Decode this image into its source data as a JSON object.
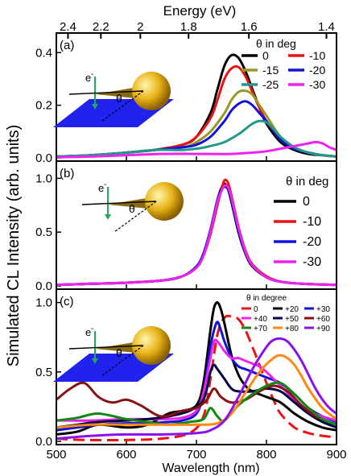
{
  "figure": {
    "top_axis_label": "Energy (eV)",
    "y_axis_label": "Simulated CL Intensity (arb. units)",
    "x_axis_label": "Wavelength (nm)",
    "x_ticks": [
      "500",
      "600",
      "700",
      "800",
      "900"
    ],
    "energy_ticks": [
      {
        "label": "2.4",
        "ev": 2.4
      },
      {
        "label": "2.2",
        "ev": 2.2
      },
      {
        "label": "2",
        "ev": 2.0
      },
      {
        "label": "1.8",
        "ev": 1.8
      },
      {
        "label": "1.6",
        "ev": 1.6
      },
      {
        "label": "1.4",
        "ev": 1.4
      }
    ]
  },
  "colors": {
    "substrate": "#2222ee",
    "sphere": "#e8b418",
    "electron_beam": "#22aa55"
  },
  "chart_data": [
    {
      "type": "line",
      "panel_label": "(a)",
      "legend_title": "",
      "legend_header": "θ in deg",
      "inset_theta": "θ",
      "inset_electron": "e",
      "inset_electron_sup": "-",
      "xlim": [
        500,
        900
      ],
      "ylim": [
        0,
        0.45
      ],
      "y_ticks": [
        "0.0",
        "0.2",
        "0.4"
      ],
      "y_tick_values": [
        0,
        0.2,
        0.4
      ],
      "series": [
        {
          "name": "0",
          "color": "#000000",
          "x": [
            500,
            550,
            600,
            640,
            680,
            700,
            720,
            730,
            740,
            750,
            760,
            770,
            780,
            790,
            800,
            820,
            840,
            860,
            880,
            900
          ],
          "y": [
            0.005,
            0.01,
            0.02,
            0.03,
            0.05,
            0.08,
            0.17,
            0.26,
            0.35,
            0.39,
            0.38,
            0.33,
            0.26,
            0.19,
            0.13,
            0.06,
            0.03,
            0.015,
            0.01,
            0.005
          ]
        },
        {
          "name": "-10",
          "color": "#ee1111",
          "x": [
            500,
            550,
            600,
            640,
            680,
            700,
            720,
            730,
            740,
            750,
            760,
            770,
            780,
            790,
            800,
            820,
            840,
            860,
            880,
            900
          ],
          "y": [
            0.005,
            0.01,
            0.02,
            0.03,
            0.05,
            0.08,
            0.15,
            0.22,
            0.3,
            0.34,
            0.345,
            0.31,
            0.25,
            0.19,
            0.14,
            0.07,
            0.035,
            0.02,
            0.01,
            0.005
          ]
        },
        {
          "name": "-15",
          "color": "#999922",
          "x": [
            500,
            550,
            600,
            640,
            680,
            700,
            720,
            740,
            750,
            760,
            770,
            780,
            790,
            800,
            820,
            840,
            860,
            880,
            900
          ],
          "y": [
            0.005,
            0.01,
            0.02,
            0.03,
            0.04,
            0.06,
            0.1,
            0.17,
            0.22,
            0.25,
            0.255,
            0.24,
            0.2,
            0.16,
            0.08,
            0.04,
            0.02,
            0.01,
            0.005
          ]
        },
        {
          "name": "-20",
          "color": "#1111dd",
          "x": [
            500,
            550,
            600,
            640,
            680,
            700,
            720,
            740,
            750,
            760,
            770,
            780,
            790,
            800,
            820,
            840,
            860,
            880,
            900
          ],
          "y": [
            0.005,
            0.01,
            0.02,
            0.03,
            0.04,
            0.05,
            0.08,
            0.14,
            0.18,
            0.205,
            0.215,
            0.2,
            0.17,
            0.14,
            0.07,
            0.035,
            0.02,
            0.01,
            0.005
          ]
        },
        {
          "name": "-25",
          "color": "#229988",
          "x": [
            500,
            550,
            600,
            640,
            680,
            700,
            720,
            740,
            760,
            770,
            780,
            790,
            800,
            810,
            820,
            840,
            860,
            880,
            900
          ],
          "y": [
            0.005,
            0.01,
            0.02,
            0.03,
            0.03,
            0.035,
            0.045,
            0.06,
            0.09,
            0.11,
            0.13,
            0.14,
            0.135,
            0.11,
            0.08,
            0.04,
            0.02,
            0.01,
            0.005
          ]
        },
        {
          "name": "-30",
          "color": "#ee22ee",
          "x": [
            500,
            550,
            600,
            650,
            700,
            750,
            780,
            800,
            820,
            840,
            860,
            870,
            880,
            890,
            900
          ],
          "y": [
            0.002,
            0.005,
            0.01,
            0.015,
            0.015,
            0.015,
            0.02,
            0.025,
            0.035,
            0.045,
            0.055,
            0.06,
            0.055,
            0.04,
            0.03
          ]
        }
      ]
    },
    {
      "type": "line",
      "panel_label": "(b)",
      "legend_title": "",
      "legend_header": "θ in deg",
      "inset_theta": "θ",
      "inset_electron": "e",
      "inset_electron_sup": "-",
      "xlim": [
        500,
        900
      ],
      "ylim": [
        0,
        1.1
      ],
      "y_ticks": [
        "0.0",
        "0.5",
        "1.0"
      ],
      "y_tick_values": [
        0,
        0.5,
        1.0
      ],
      "series": [
        {
          "name": "0",
          "color": "#000000",
          "x": [
            500,
            550,
            600,
            650,
            680,
            700,
            710,
            720,
            730,
            735,
            740,
            745,
            750,
            760,
            770,
            780,
            800,
            820,
            850,
            900
          ],
          "y": [
            0.01,
            0.02,
            0.03,
            0.05,
            0.09,
            0.18,
            0.3,
            0.52,
            0.8,
            0.9,
            0.95,
            0.9,
            0.78,
            0.5,
            0.3,
            0.18,
            0.08,
            0.04,
            0.02,
            0.01
          ]
        },
        {
          "name": "-10",
          "color": "#ee1111",
          "x": [
            500,
            550,
            600,
            650,
            680,
            700,
            710,
            720,
            730,
            735,
            740,
            745,
            750,
            760,
            770,
            780,
            800,
            820,
            850,
            900
          ],
          "y": [
            0.01,
            0.02,
            0.03,
            0.05,
            0.09,
            0.17,
            0.28,
            0.48,
            0.75,
            0.88,
            0.98,
            0.96,
            0.84,
            0.55,
            0.33,
            0.2,
            0.09,
            0.04,
            0.02,
            0.01
          ]
        },
        {
          "name": "-20",
          "color": "#1111dd",
          "x": [
            500,
            550,
            600,
            650,
            680,
            700,
            710,
            720,
            730,
            735,
            740,
            745,
            750,
            760,
            770,
            780,
            800,
            820,
            850,
            900
          ],
          "y": [
            0.01,
            0.02,
            0.03,
            0.05,
            0.09,
            0.18,
            0.3,
            0.52,
            0.8,
            0.88,
            0.92,
            0.9,
            0.8,
            0.52,
            0.31,
            0.19,
            0.08,
            0.04,
            0.02,
            0.01
          ]
        },
        {
          "name": "-30",
          "color": "#ee22ee",
          "x": [
            500,
            550,
            600,
            650,
            680,
            700,
            710,
            720,
            730,
            735,
            740,
            745,
            750,
            760,
            770,
            780,
            800,
            820,
            850,
            900
          ],
          "y": [
            0.01,
            0.02,
            0.03,
            0.05,
            0.09,
            0.17,
            0.28,
            0.5,
            0.78,
            0.87,
            0.93,
            0.92,
            0.82,
            0.54,
            0.32,
            0.19,
            0.08,
            0.04,
            0.02,
            0.01
          ]
        }
      ]
    },
    {
      "type": "line",
      "panel_label": "(c)",
      "legend_title": "θ in degree",
      "legend_header": "",
      "inset_theta": "θ",
      "inset_electron": "e",
      "inset_electron_sup": "-",
      "xlim": [
        500,
        900
      ],
      "ylim": [
        0,
        1.05
      ],
      "y_ticks": [
        "0.0",
        "0.5",
        "1.0"
      ],
      "y_tick_values": [
        0,
        0.5,
        1.0
      ],
      "series": [
        {
          "name": "0",
          "color": "#ee1111",
          "dashed": true,
          "x": [
            500,
            540,
            600,
            650,
            690,
            710,
            720,
            730,
            740,
            750,
            760,
            770,
            780,
            790,
            800,
            810,
            820,
            840,
            860,
            880,
            900
          ],
          "y": [
            0.02,
            0.01,
            0.01,
            0.02,
            0.06,
            0.18,
            0.45,
            0.77,
            0.89,
            0.9,
            0.88,
            0.8,
            0.68,
            0.55,
            0.42,
            0.3,
            0.2,
            0.1,
            0.06,
            0.04,
            0.03
          ]
        },
        {
          "name": "+20",
          "color": "#000000",
          "x": [
            500,
            530,
            560,
            600,
            630,
            660,
            680,
            700,
            710,
            720,
            725,
            730,
            735,
            740,
            750,
            760,
            770,
            780,
            800,
            820,
            840,
            860,
            880,
            900
          ],
          "y": [
            0.05,
            0.07,
            0.12,
            0.1,
            0.12,
            0.2,
            0.22,
            0.26,
            0.42,
            0.8,
            0.96,
            1.0,
            0.95,
            0.85,
            0.62,
            0.48,
            0.4,
            0.36,
            0.32,
            0.28,
            0.2,
            0.14,
            0.1,
            0.08
          ]
        },
        {
          "name": "+30",
          "color": "#1111dd",
          "x": [
            500,
            530,
            560,
            600,
            630,
            660,
            680,
            700,
            710,
            720,
            725,
            730,
            735,
            740,
            750,
            760,
            770,
            780,
            800,
            820,
            840,
            860,
            880,
            900
          ],
          "y": [
            0.08,
            0.1,
            0.12,
            0.13,
            0.13,
            0.14,
            0.15,
            0.2,
            0.35,
            0.68,
            0.8,
            0.86,
            0.8,
            0.72,
            0.6,
            0.54,
            0.52,
            0.5,
            0.46,
            0.42,
            0.34,
            0.24,
            0.18,
            0.14
          ]
        },
        {
          "name": "+40",
          "color": "#ee22ee",
          "x": [
            500,
            550,
            600,
            650,
            680,
            700,
            710,
            720,
            725,
            730,
            740,
            750,
            760,
            770,
            780,
            790,
            800,
            820,
            840,
            860,
            880,
            900
          ],
          "y": [
            0.15,
            0.15,
            0.16,
            0.16,
            0.17,
            0.22,
            0.35,
            0.6,
            0.72,
            0.72,
            0.65,
            0.6,
            0.6,
            0.58,
            0.56,
            0.54,
            0.5,
            0.4,
            0.3,
            0.22,
            0.18,
            0.15
          ]
        },
        {
          "name": "+50",
          "color": "#000044",
          "x": [
            500,
            530,
            560,
            600,
            630,
            660,
            690,
            710,
            720,
            725,
            730,
            740,
            750,
            760,
            780,
            800,
            820,
            840,
            860,
            880,
            900
          ],
          "y": [
            0.1,
            0.12,
            0.14,
            0.15,
            0.16,
            0.18,
            0.22,
            0.3,
            0.5,
            0.55,
            0.52,
            0.45,
            0.38,
            0.36,
            0.36,
            0.38,
            0.36,
            0.28,
            0.2,
            0.14,
            0.1
          ]
        },
        {
          "name": "+60",
          "color": "#881111",
          "x": [
            500,
            520,
            540,
            560,
            580,
            600,
            620,
            650,
            680,
            700,
            715,
            725,
            735,
            750,
            770,
            790,
            810,
            830,
            850,
            870,
            900
          ],
          "y": [
            0.3,
            0.38,
            0.42,
            0.32,
            0.28,
            0.3,
            0.26,
            0.18,
            0.22,
            0.24,
            0.3,
            0.38,
            0.32,
            0.28,
            0.3,
            0.36,
            0.4,
            0.36,
            0.26,
            0.18,
            0.12
          ]
        },
        {
          "name": "+70",
          "color": "#118811",
          "x": [
            500,
            530,
            560,
            600,
            630,
            660,
            690,
            710,
            720,
            730,
            740,
            760,
            780,
            800,
            820,
            840,
            860,
            880,
            900
          ],
          "y": [
            0.15,
            0.17,
            0.2,
            0.16,
            0.14,
            0.12,
            0.14,
            0.16,
            0.24,
            0.18,
            0.15,
            0.26,
            0.34,
            0.4,
            0.42,
            0.34,
            0.24,
            0.16,
            0.12
          ]
        },
        {
          "name": "+80",
          "color": "#ff8811",
          "x": [
            500,
            550,
            600,
            650,
            700,
            730,
            750,
            770,
            790,
            810,
            820,
            830,
            840,
            850,
            860,
            880,
            900
          ],
          "y": [
            0.1,
            0.12,
            0.12,
            0.12,
            0.12,
            0.13,
            0.2,
            0.35,
            0.5,
            0.6,
            0.62,
            0.6,
            0.55,
            0.47,
            0.38,
            0.24,
            0.16
          ]
        },
        {
          "name": "+90",
          "color": "#8811ee",
          "x": [
            500,
            550,
            600,
            650,
            700,
            720,
            740,
            760,
            780,
            800,
            810,
            820,
            830,
            840,
            850,
            860,
            870,
            880,
            890,
            900
          ],
          "y": [
            0.02,
            0.04,
            0.05,
            0.05,
            0.06,
            0.08,
            0.15,
            0.32,
            0.52,
            0.68,
            0.73,
            0.74,
            0.72,
            0.66,
            0.58,
            0.48,
            0.38,
            0.3,
            0.24,
            0.2
          ]
        }
      ]
    }
  ]
}
